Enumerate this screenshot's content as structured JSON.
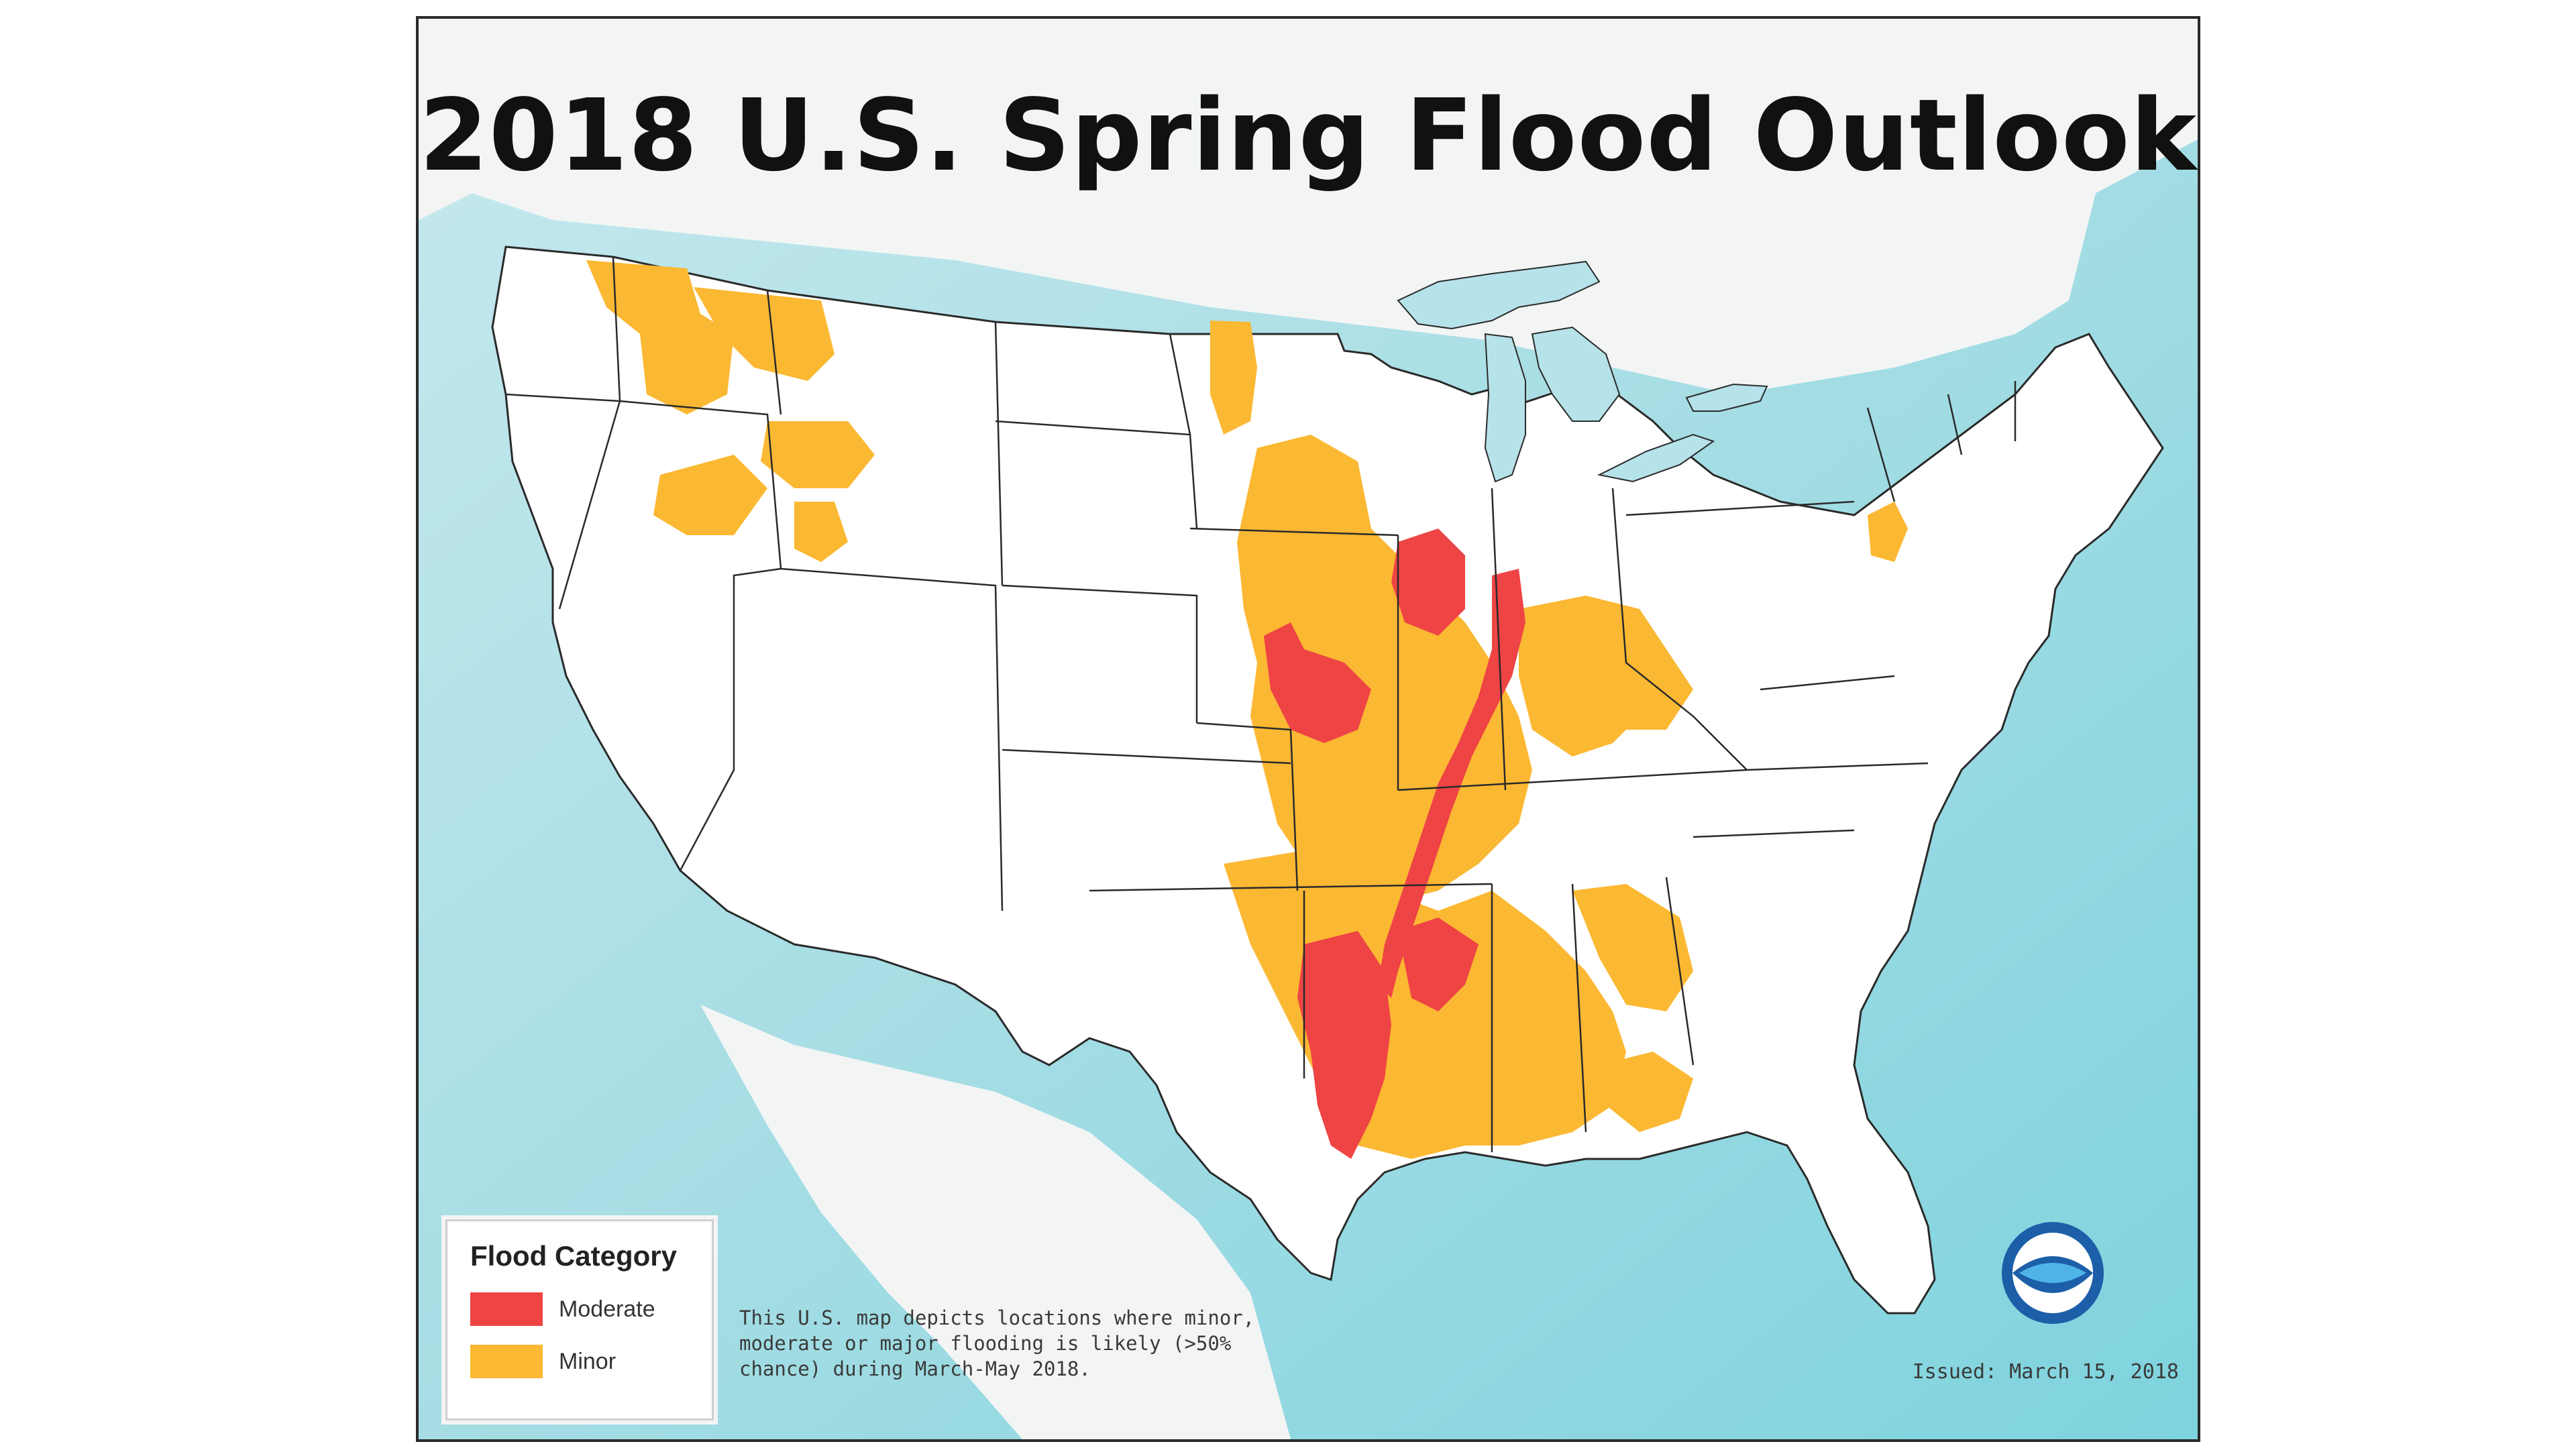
{
  "title": "2018 U.S. Spring Flood Outlook",
  "legend": {
    "title": "Flood Category",
    "items": [
      {
        "label": "Moderate",
        "color": "#ee4444"
      },
      {
        "label": "Minor",
        "color": "#fbb832"
      }
    ]
  },
  "description": "This U.S. map depicts locations where minor, moderate or major flooding is likely (>50% chance) during March-May 2018.",
  "issued": "Issued: March 15, 2018",
  "logo": {
    "text": "NOAA",
    "icon": "noaa-logo-icon"
  },
  "colors": {
    "ocean": "#a9dfe6",
    "land": "#ffffff",
    "lakes": "#b6e2ea",
    "moderate": "#ee4444",
    "minor": "#fbb832",
    "state_lines": "#2a2a2a"
  }
}
